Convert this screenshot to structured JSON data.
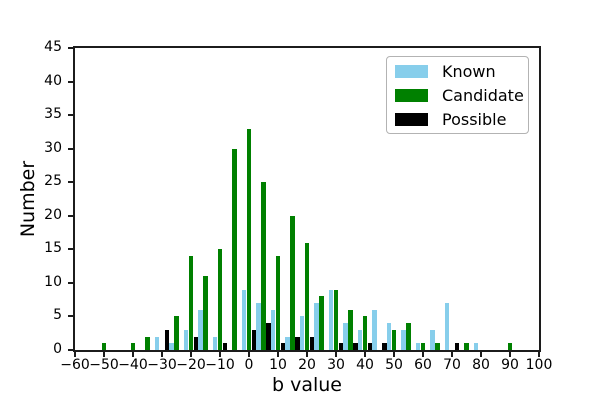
{
  "chart_data": {
    "type": "bar",
    "subtype": "grouped-histogram",
    "title": "",
    "xlabel": "b value",
    "ylabel": "Number",
    "xlim": [
      -60,
      100
    ],
    "ylim": [
      0,
      45
    ],
    "bin_width": 5,
    "grid": false,
    "legend_position": "upper right",
    "series": [
      {
        "name": "Known",
        "color": "#87CEEB"
      },
      {
        "name": "Candidate",
        "color": "#008000"
      },
      {
        "name": "Possible",
        "color": "#000000"
      }
    ],
    "x_tick_values": [
      -60,
      -50,
      -40,
      -30,
      -20,
      -10,
      0,
      10,
      20,
      30,
      40,
      50,
      60,
      70,
      80,
      90,
      100
    ],
    "x_tick_labels": [
      "−60",
      "−50",
      "−40",
      "−30",
      "−20",
      "−10",
      "0",
      "10",
      "20",
      "30",
      "40",
      "50",
      "60",
      "70",
      "80",
      "90",
      "100"
    ],
    "y_tick_values": [
      0,
      5,
      10,
      15,
      20,
      25,
      30,
      35,
      40,
      45
    ],
    "y_tick_labels": [
      "0",
      "5",
      "10",
      "15",
      "20",
      "25",
      "30",
      "35",
      "40",
      "45"
    ],
    "bins": [
      {
        "b": -50,
        "known": 0,
        "candidate": 1,
        "possible": 0
      },
      {
        "b": -40,
        "known": 0,
        "candidate": 1,
        "possible": 0
      },
      {
        "b": -35,
        "known": 0,
        "candidate": 2,
        "possible": 0
      },
      {
        "b": -30,
        "known": 2,
        "candidate": 0,
        "possible": 3
      },
      {
        "b": -25,
        "known": 1,
        "candidate": 5,
        "possible": 0
      },
      {
        "b": -20,
        "known": 3,
        "candidate": 14,
        "possible": 2
      },
      {
        "b": -15,
        "known": 6,
        "candidate": 11,
        "possible": 0
      },
      {
        "b": -10,
        "known": 2,
        "candidate": 15,
        "possible": 1
      },
      {
        "b": -5,
        "known": 0,
        "candidate": 30,
        "possible": 0
      },
      {
        "b": 0,
        "known": 9,
        "candidate": 33,
        "possible": 3
      },
      {
        "b": 5,
        "known": 7,
        "candidate": 25,
        "possible": 4
      },
      {
        "b": 10,
        "known": 6,
        "candidate": 14,
        "possible": 1
      },
      {
        "b": 15,
        "known": 2,
        "candidate": 20,
        "possible": 2
      },
      {
        "b": 20,
        "known": 5,
        "candidate": 16,
        "possible": 2
      },
      {
        "b": 25,
        "known": 7,
        "candidate": 8,
        "possible": 0
      },
      {
        "b": 30,
        "known": 9,
        "candidate": 9,
        "possible": 1
      },
      {
        "b": 35,
        "known": 4,
        "candidate": 6,
        "possible": 1
      },
      {
        "b": 40,
        "known": 3,
        "candidate": 5,
        "possible": 1
      },
      {
        "b": 45,
        "known": 6,
        "candidate": 0,
        "possible": 1
      },
      {
        "b": 50,
        "known": 4,
        "candidate": 3,
        "possible": 0
      },
      {
        "b": 55,
        "known": 3,
        "candidate": 4,
        "possible": 0
      },
      {
        "b": 60,
        "known": 1,
        "candidate": 1,
        "possible": 0
      },
      {
        "b": 65,
        "known": 3,
        "candidate": 1,
        "possible": 0
      },
      {
        "b": 70,
        "known": 7,
        "candidate": 0,
        "possible": 1
      },
      {
        "b": 75,
        "known": 0,
        "candidate": 1,
        "possible": 0
      },
      {
        "b": 80,
        "known": 1,
        "candidate": 0,
        "possible": 0
      },
      {
        "b": 90,
        "known": 0,
        "candidate": 1,
        "possible": 0
      }
    ]
  }
}
